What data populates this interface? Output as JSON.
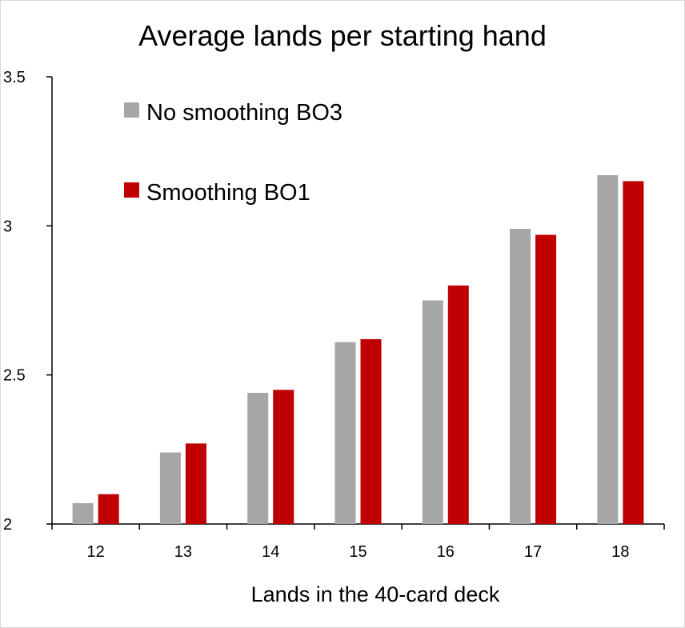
{
  "chart_data": {
    "type": "bar",
    "title": "Average lands per starting hand",
    "xlabel": "Lands in the 40-card deck",
    "ylabel": "",
    "categories": [
      "12",
      "13",
      "14",
      "15",
      "16",
      "17",
      "18"
    ],
    "ylim": [
      2,
      3.5
    ],
    "yticks": [
      2,
      2.5,
      3,
      3.5
    ],
    "ytick_labels": [
      "2",
      "2.5",
      "3",
      "3.5"
    ],
    "grid": false,
    "legend_position": "top-left",
    "series": [
      {
        "name": "No smoothing BO3",
        "color": "#a6a6a6",
        "values": [
          2.07,
          2.24,
          2.44,
          2.61,
          2.75,
          2.99,
          3.17
        ]
      },
      {
        "name": "Smoothing BO1",
        "color": "#c00000",
        "values": [
          2.1,
          2.27,
          2.45,
          2.62,
          2.8,
          2.97,
          3.15
        ]
      }
    ]
  }
}
